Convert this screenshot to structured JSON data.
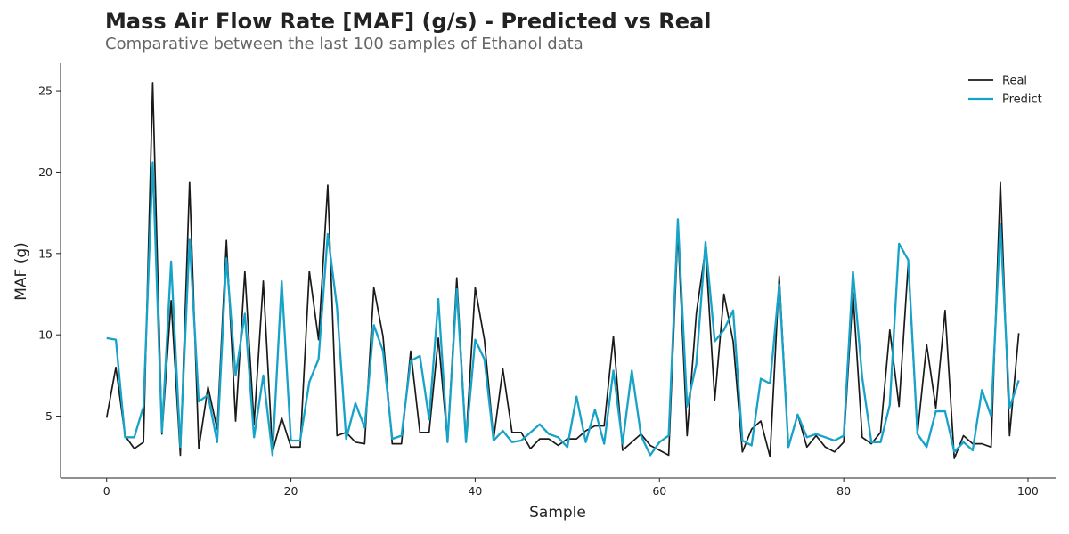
{
  "chart_data": {
    "type": "line",
    "title": "Mass Air Flow Rate [MAF] (g/s) - Predicted vs Real",
    "subtitle": "Comparative between the last 100 samples of Ethanol data",
    "xlabel": "Sample",
    "ylabel": "MAF (g)",
    "xlim": [
      -5,
      103
    ],
    "ylim": [
      1.2,
      26.7
    ],
    "xticks": [
      0,
      20,
      40,
      60,
      80,
      100
    ],
    "yticks": [
      5,
      10,
      15,
      20,
      25
    ],
    "grid": false,
    "legend_position": "top-right",
    "series": [
      {
        "name": "Real",
        "color": "#1a1a1a",
        "values": [
          4.9,
          8.0,
          3.8,
          3.0,
          3.4,
          25.5,
          3.9,
          12.1,
          2.6,
          19.4,
          3.0,
          6.8,
          4.2,
          15.8,
          4.7,
          13.9,
          4.5,
          13.3,
          2.8,
          4.9,
          3.1,
          3.1,
          13.9,
          9.7,
          19.2,
          3.8,
          4.0,
          3.4,
          3.3,
          12.9,
          9.9,
          3.3,
          3.3,
          9.0,
          4.0,
          4.0,
          9.8,
          3.4,
          13.5,
          3.4,
          12.9,
          9.7,
          3.6,
          7.9,
          4.0,
          4.0,
          3.0,
          3.6,
          3.6,
          3.2,
          3.6,
          3.6,
          4.1,
          4.4,
          4.4,
          9.9,
          2.9,
          3.4,
          3.9,
          3.2,
          2.9,
          2.6,
          16.4,
          3.8,
          11.3,
          15.3,
          6.0,
          12.5,
          9.6,
          2.8,
          4.2,
          4.7,
          2.5,
          13.6,
          3.1,
          5.1,
          3.1,
          3.8,
          3.1,
          2.8,
          3.4,
          12.6,
          3.7,
          3.3,
          4.0,
          10.3,
          5.6,
          14.4,
          3.9,
          9.4,
          5.5,
          11.5,
          2.4,
          3.8,
          3.3,
          3.3,
          3.1,
          19.4,
          3.8,
          10.1
        ]
      },
      {
        "name": "Predict",
        "color": "#17a2c8",
        "values": [
          9.8,
          9.7,
          3.7,
          3.7,
          5.6,
          20.6,
          4.0,
          14.5,
          3.1,
          15.9,
          5.9,
          6.3,
          3.4,
          14.7,
          7.5,
          11.3,
          3.7,
          7.5,
          2.6,
          13.3,
          3.5,
          3.5,
          7.1,
          8.5,
          16.2,
          11.7,
          3.6,
          5.8,
          4.3,
          10.6,
          9.0,
          3.6,
          3.8,
          8.4,
          8.7,
          4.8,
          12.2,
          3.4,
          12.8,
          3.4,
          9.7,
          8.5,
          3.5,
          4.1,
          3.4,
          3.5,
          4.0,
          4.5,
          3.9,
          3.7,
          3.1,
          6.2,
          3.4,
          5.4,
          3.3,
          7.8,
          3.3,
          7.8,
          3.8,
          2.6,
          3.4,
          3.8,
          17.1,
          5.6,
          8.2,
          15.7,
          9.6,
          10.3,
          11.5,
          3.5,
          3.2,
          7.3,
          7.0,
          13.1,
          3.1,
          5.1,
          3.7,
          3.9,
          3.7,
          3.5,
          3.8,
          13.9,
          7.4,
          3.4,
          3.4,
          5.7,
          15.6,
          14.6,
          3.9,
          3.1,
          5.3,
          5.3,
          2.8,
          3.4,
          2.9,
          6.6,
          5.0,
          16.8,
          5.5,
          7.2
        ]
      }
    ]
  }
}
